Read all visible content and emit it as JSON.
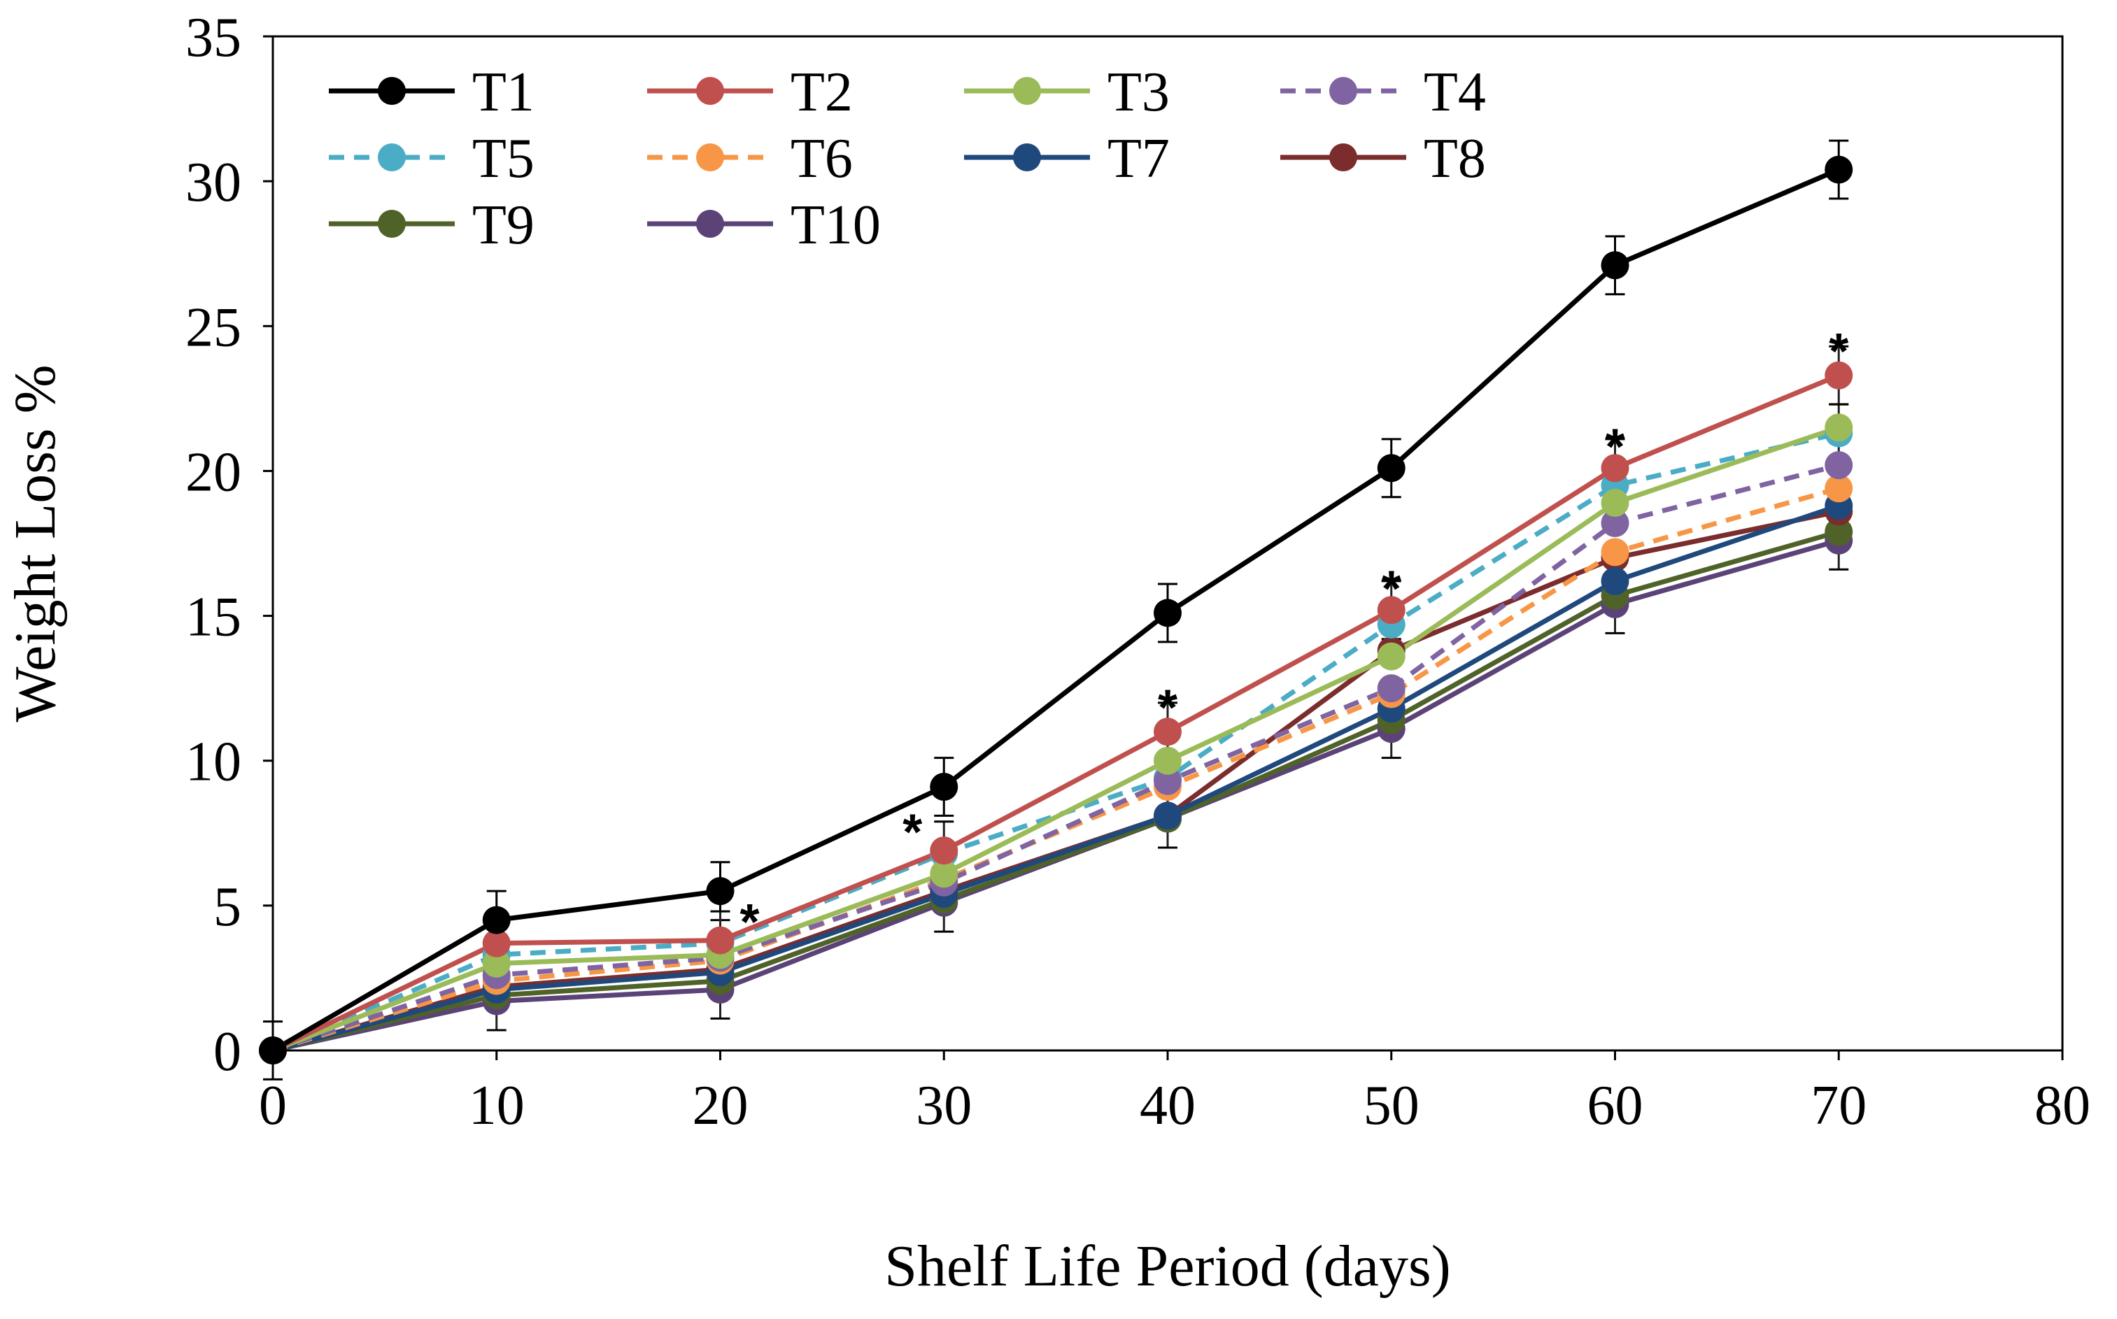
{
  "chart_data": {
    "type": "line",
    "title": "",
    "xlabel": "Shelf Life Period (days)",
    "ylabel": "Weight Loss %",
    "xlim": [
      0,
      80
    ],
    "ylim": [
      0,
      35
    ],
    "xticks": [
      0,
      10,
      20,
      30,
      40,
      50,
      60,
      70,
      80
    ],
    "yticks": [
      0,
      5,
      10,
      15,
      20,
      25,
      30,
      35
    ],
    "grid": false,
    "legend_position": "top-left",
    "x": [
      0,
      10,
      20,
      30,
      40,
      50,
      60,
      70
    ],
    "series": [
      {
        "name": "T1",
        "color": "#000000",
        "dashed": false,
        "values": [
          0,
          4.5,
          5.5,
          9.1,
          15.1,
          20.1,
          27.1,
          30.4
        ],
        "error": [
          1.0,
          1.0,
          1.0,
          1.0,
          1.0,
          1.0,
          1.0,
          1.0
        ]
      },
      {
        "name": "T2",
        "color": "#C0504D",
        "dashed": false,
        "values": [
          0,
          3.7,
          3.8,
          6.9,
          11.0,
          15.2,
          20.1,
          23.3
        ],
        "error": [
          0,
          1.0,
          1.0,
          1.0,
          1.0,
          1.0,
          1.0,
          1.0
        ]
      },
      {
        "name": "T3",
        "color": "#9BBB59",
        "dashed": false,
        "values": [
          0,
          3.0,
          3.3,
          6.1,
          10.0,
          13.6,
          18.9,
          21.5
        ],
        "error": [
          0,
          0,
          0,
          0,
          0,
          0,
          0,
          0
        ]
      },
      {
        "name": "T4",
        "color": "#8064A2",
        "dashed": true,
        "values": [
          0,
          2.6,
          3.2,
          5.8,
          9.3,
          12.5,
          18.2,
          20.2
        ],
        "error": [
          0,
          0,
          0,
          0,
          0,
          0,
          0,
          0
        ]
      },
      {
        "name": "T5",
        "color": "#4BACC6",
        "dashed": true,
        "values": [
          0,
          3.3,
          3.7,
          6.8,
          9.4,
          14.7,
          19.5,
          21.3
        ],
        "error": [
          0,
          0,
          0,
          0,
          0,
          0,
          0,
          1.0
        ]
      },
      {
        "name": "T6",
        "color": "#F79646",
        "dashed": true,
        "values": [
          0,
          2.4,
          3.1,
          5.9,
          9.1,
          12.3,
          17.2,
          19.4
        ],
        "error": [
          0,
          0,
          0,
          0,
          0,
          0,
          0,
          0
        ]
      },
      {
        "name": "T7",
        "color": "#1F497D",
        "dashed": false,
        "values": [
          0,
          2.1,
          2.7,
          5.4,
          8.1,
          11.8,
          16.2,
          18.8
        ],
        "error": [
          0,
          0,
          0,
          0,
          0,
          0,
          0,
          0
        ]
      },
      {
        "name": "T8",
        "color": "#7B2C2C",
        "dashed": false,
        "values": [
          0,
          2.2,
          2.8,
          5.5,
          8.1,
          13.8,
          17.0,
          18.6
        ],
        "error": [
          0,
          0,
          0,
          0,
          0,
          0,
          0,
          0
        ]
      },
      {
        "name": "T9",
        "color": "#4F6228",
        "dashed": false,
        "values": [
          0,
          1.9,
          2.4,
          5.2,
          8.0,
          11.4,
          15.7,
          17.9
        ],
        "error": [
          0,
          0,
          0,
          0,
          0,
          0,
          0,
          0
        ]
      },
      {
        "name": "T10",
        "color": "#5B4378",
        "dashed": false,
        "values": [
          0,
          1.7,
          2.1,
          5.1,
          8.0,
          11.1,
          15.4,
          17.6
        ],
        "error": [
          0,
          1.0,
          1.0,
          1.0,
          1.0,
          1.0,
          1.0,
          1.0
        ]
      }
    ],
    "annotations": [
      {
        "text": "*",
        "x": 20,
        "y": 4.8
      },
      {
        "text": "*",
        "x": 30,
        "y": 7.9
      },
      {
        "text": "*",
        "x": 40,
        "y": 12.2
      },
      {
        "text": "*",
        "x": 50,
        "y": 16.3
      },
      {
        "text": "*",
        "x": 60,
        "y": 21.2
      },
      {
        "text": "*",
        "x": 70,
        "y": 24.5
      }
    ]
  }
}
